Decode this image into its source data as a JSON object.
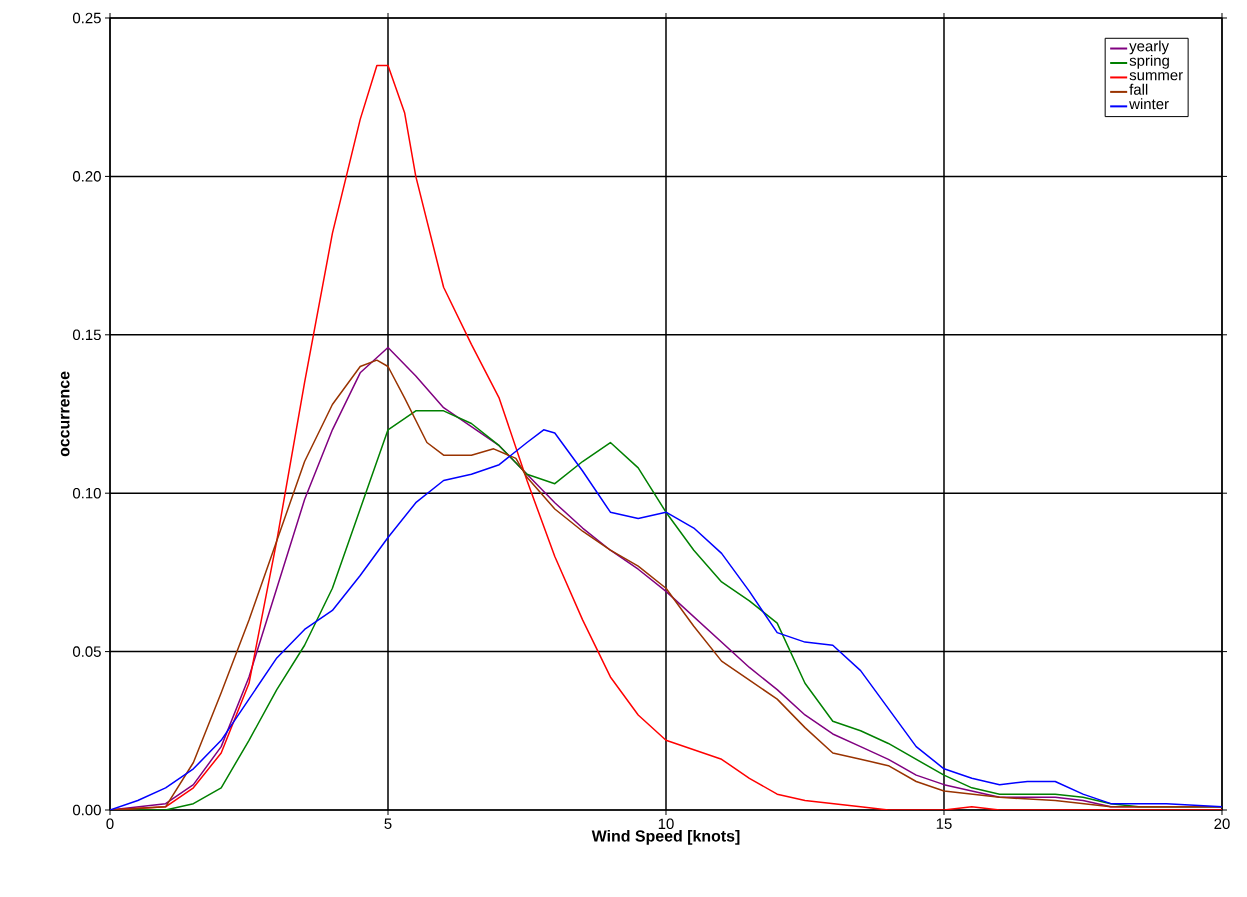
{
  "chart_data": {
    "type": "line",
    "xlabel": "Wind Speed [knots]",
    "ylabel": "occurrence",
    "xlim": [
      0,
      20
    ],
    "xticks": [
      0,
      5,
      10,
      15,
      20
    ],
    "ylim": [
      0,
      0.25
    ],
    "yticks": [
      {
        "value": 0,
        "label": "0.00"
      },
      {
        "value": 0.05,
        "label": "0.05"
      },
      {
        "value": 0.1,
        "label": "0.10"
      },
      {
        "value": 0.15,
        "label": "0.15"
      },
      {
        "value": 0.2,
        "label": "0.20"
      },
      {
        "value": 0.25,
        "label": "0.25"
      }
    ],
    "grid": true,
    "legend": "top right",
    "marker": "none",
    "line_style": "solid",
    "series": [
      {
        "name": "yearly",
        "color": "#800080",
        "x": [
          0,
          0.5,
          1,
          1.5,
          2,
          2.5,
          3,
          3.5,
          4,
          4.5,
          5,
          5.5,
          6,
          6.5,
          7,
          7.5,
          8,
          8.5,
          9,
          9.5,
          10,
          10.5,
          11,
          11.5,
          12,
          12.5,
          13,
          13.5,
          14,
          14.5,
          15,
          15.5,
          16,
          16.5,
          17,
          17.5,
          18,
          19,
          20
        ],
        "values": [
          0,
          0.001,
          0.002,
          0.008,
          0.02,
          0.042,
          0.07,
          0.098,
          0.12,
          0.138,
          0.146,
          0.137,
          0.127,
          0.121,
          0.115,
          0.106,
          0.097,
          0.089,
          0.082,
          0.076,
          0.069,
          0.061,
          0.053,
          0.045,
          0.038,
          0.03,
          0.024,
          0.02,
          0.016,
          0.011,
          0.008,
          0.006,
          0.004,
          0.004,
          0.004,
          0.003,
          0.001,
          0.001,
          0.001
        ]
      },
      {
        "name": "spring",
        "color": "#008000",
        "x": [
          0,
          1,
          1.5,
          2,
          2.5,
          3,
          3.5,
          4,
          4.5,
          5,
          5.5,
          6,
          6.5,
          7,
          7.5,
          8,
          8.5,
          9,
          9.5,
          10,
          10.5,
          11,
          11.5,
          12,
          12.5,
          13,
          13.5,
          14,
          14.5,
          15,
          15.5,
          16,
          17,
          17.5,
          18,
          18.5,
          20
        ],
        "values": [
          0,
          0,
          0.002,
          0.007,
          0.022,
          0.038,
          0.052,
          0.07,
          0.095,
          0.12,
          0.126,
          0.126,
          0.122,
          0.115,
          0.106,
          0.103,
          0.11,
          0.116,
          0.108,
          0.094,
          0.082,
          0.072,
          0.066,
          0.059,
          0.04,
          0.028,
          0.025,
          0.021,
          0.016,
          0.011,
          0.007,
          0.005,
          0.005,
          0.004,
          0.002,
          0.001,
          0.001
        ]
      },
      {
        "name": "summer",
        "color": "#ff0000",
        "x": [
          0,
          1,
          1.5,
          2,
          2.5,
          3,
          3.5,
          4,
          4.5,
          4.8,
          5,
          5.3,
          5.5,
          6,
          6.5,
          7,
          7.5,
          8,
          8.5,
          9,
          9.5,
          10,
          10.5,
          11,
          11.5,
          12,
          12.5,
          13,
          13.5,
          14,
          15,
          15.5,
          16,
          20
        ],
        "values": [
          0,
          0.001,
          0.007,
          0.018,
          0.04,
          0.085,
          0.135,
          0.182,
          0.218,
          0.235,
          0.235,
          0.22,
          0.2,
          0.165,
          0.147,
          0.13,
          0.104,
          0.08,
          0.06,
          0.042,
          0.03,
          0.022,
          0.019,
          0.016,
          0.01,
          0.005,
          0.003,
          0.002,
          0.001,
          0,
          0,
          0.001,
          0,
          0
        ]
      },
      {
        "name": "fall",
        "color": "#993300",
        "x": [
          0,
          1,
          1.5,
          2,
          2.5,
          3,
          3.5,
          4,
          4.5,
          4.8,
          5,
          5.3,
          5.7,
          6,
          6.5,
          6.9,
          7.3,
          7.5,
          8,
          8.5,
          9,
          9.5,
          10,
          10.5,
          11,
          11.5,
          12,
          12.5,
          13,
          13.5,
          14,
          14.5,
          15,
          16,
          17,
          18,
          20
        ],
        "values": [
          0,
          0.001,
          0.015,
          0.037,
          0.06,
          0.085,
          0.11,
          0.128,
          0.14,
          0.142,
          0.14,
          0.13,
          0.116,
          0.112,
          0.112,
          0.114,
          0.111,
          0.105,
          0.095,
          0.088,
          0.082,
          0.077,
          0.07,
          0.058,
          0.047,
          0.041,
          0.035,
          0.026,
          0.018,
          0.016,
          0.014,
          0.009,
          0.006,
          0.004,
          0.003,
          0.001,
          0.001
        ]
      },
      {
        "name": "winter",
        "color": "#0000ff",
        "x": [
          0,
          0.5,
          1,
          1.5,
          2,
          2.5,
          3,
          3.5,
          4,
          4.5,
          5,
          5.5,
          6,
          6.5,
          7,
          7.5,
          7.8,
          8,
          8.5,
          9,
          9.5,
          10,
          10.5,
          11,
          11.5,
          12,
          12.5,
          13,
          13.5,
          14,
          14.5,
          15,
          15.5,
          16,
          16.5,
          17,
          17.5,
          18,
          19,
          20
        ],
        "values": [
          0,
          0.003,
          0.007,
          0.013,
          0.022,
          0.035,
          0.048,
          0.057,
          0.063,
          0.074,
          0.086,
          0.097,
          0.104,
          0.106,
          0.109,
          0.116,
          0.12,
          0.119,
          0.107,
          0.094,
          0.092,
          0.094,
          0.089,
          0.081,
          0.069,
          0.056,
          0.053,
          0.052,
          0.044,
          0.032,
          0.02,
          0.013,
          0.01,
          0.008,
          0.009,
          0.009,
          0.005,
          0.002,
          0.002,
          0.001
        ]
      }
    ]
  }
}
